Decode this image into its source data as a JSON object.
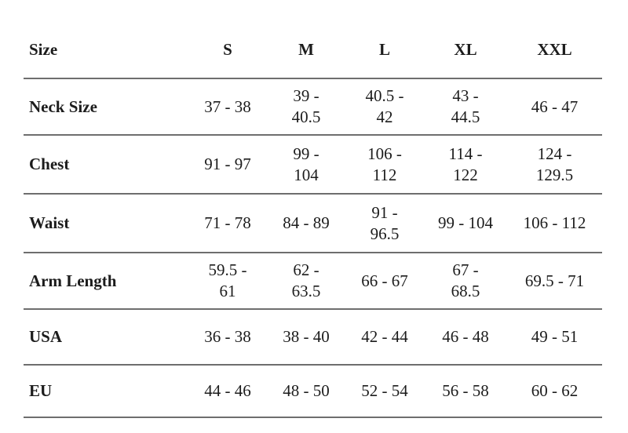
{
  "size_chart": {
    "columns": [
      "Size",
      "S",
      "M",
      "L",
      "XL",
      "XXL"
    ],
    "rows": [
      {
        "label": "Neck Size",
        "values": [
          "37 - 38",
          "39 -\n40.5",
          "40.5 -\n42",
          "43 -\n44.5",
          "46 - 47"
        ]
      },
      {
        "label": "Chest",
        "values": [
          "91 - 97",
          "99 -\n104",
          "106 -\n112",
          "114 -\n122",
          "124 -\n129.5"
        ]
      },
      {
        "label": "Waist",
        "values": [
          "71 - 78",
          "84 - 89",
          "91 -\n96.5",
          "99 - 104",
          "106 - 112"
        ]
      },
      {
        "label": "Arm Length",
        "values": [
          "59.5 -\n61",
          "62 -\n63.5",
          "66 - 67",
          "67 -\n68.5",
          "69.5 - 71"
        ]
      },
      {
        "label": "USA",
        "values": [
          "36 - 38",
          "38 - 40",
          "42 - 44",
          "46 - 48",
          "49 - 51"
        ]
      },
      {
        "label": "EU",
        "values": [
          "44 - 46",
          "48 - 50",
          "52 - 54",
          "56 - 58",
          "60 - 62"
        ]
      }
    ],
    "colors": {
      "text": "#1c1c1c",
      "rule": "#6e6e6e",
      "background": "#ffffff"
    }
  }
}
